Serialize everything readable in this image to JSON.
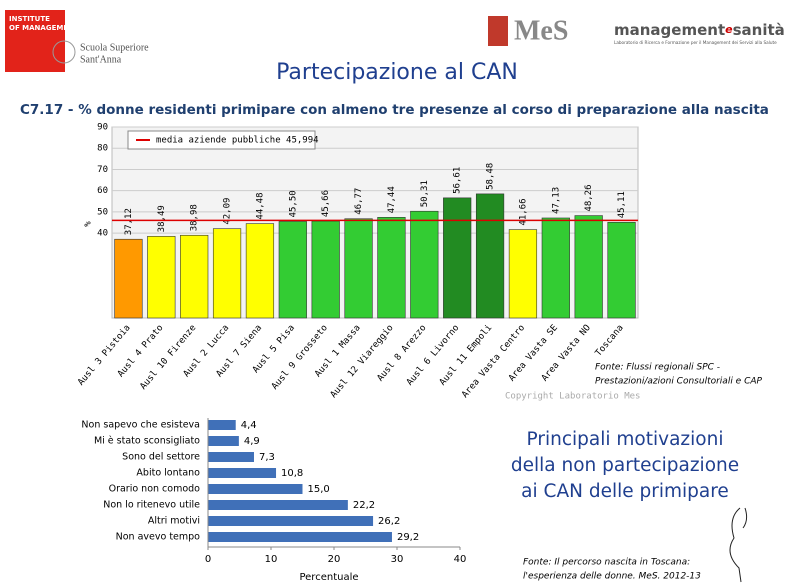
{
  "header": {
    "institute": [
      "INSTITUTE",
      "OF MANAGEMENT"
    ],
    "school": [
      "Scuola Superiore",
      "Sant'Anna"
    ],
    "mes_logo": "MeS",
    "brand": [
      "management",
      "e",
      "sanità"
    ],
    "tagline": "Laboratorio di Ricerca e Formazione per il Management dei Servizi alla Salute"
  },
  "title": "Partecipazione al CAN",
  "chart_data": [
    {
      "type": "bar",
      "title": "C7.17 - % donne residenti primipare con almeno tre presenze al corso di preparazione alla nascita",
      "ylabel": "%",
      "categories": [
        "Ausl 3 Pistoia",
        "Ausl 4 Prato",
        "Ausl 10 Firenze",
        "Ausl 2 Lucca",
        "Ausl 7 Siena",
        "Ausl 5 Pisa",
        "Ausl 9 Grosseto",
        "Ausl 1 Massa",
        "Ausl 12 Viareggio",
        "Ausl 8 Arezzo",
        "Ausl 6 Livorno",
        "Ausl 11 Empoli",
        "Area Vasta Centro",
        "Area Vasta SE",
        "Area Vasta NO",
        "Toscana"
      ],
      "values": [
        37.12,
        38.49,
        38.98,
        42.09,
        44.48,
        45.5,
        45.66,
        46.77,
        47.44,
        50.31,
        56.61,
        58.48,
        41.66,
        47.13,
        48.26,
        45.11
      ],
      "value_labels": [
        "37,12",
        "38,49",
        "38,98",
        "42,09",
        "44,48",
        "45,50",
        "45,66",
        "46,77",
        "47,44",
        "50,31",
        "56,61",
        "58,48",
        "41,66",
        "47,13",
        "48,26",
        "45,11"
      ],
      "colors": [
        "#ff9900",
        "#ffff00",
        "#ffff00",
        "#ffff00",
        "#ffff00",
        "#33cc33",
        "#33cc33",
        "#33cc33",
        "#33cc33",
        "#33cc33",
        "#228b22",
        "#228b22",
        "#ffff00",
        "#33cc33",
        "#33cc33",
        "#33cc33"
      ],
      "reference": {
        "label": "media aziende pubbliche 45,994",
        "value": 45.994,
        "color": "#dd0000"
      },
      "ylim": [
        0,
        90
      ],
      "yticks": [
        40,
        50,
        60,
        70,
        80,
        90
      ],
      "grid": true
    },
    {
      "type": "barh",
      "title": [
        "Principali motivazioni",
        "della non partecipazione",
        "ai CAN delle primipare"
      ],
      "xlabel": "Percentuale",
      "categories": [
        "Non sapevo che esisteva",
        "Mi è stato sconsigliato",
        "Sono del settore",
        "Abito lontano",
        "Orario non comodo",
        "Non lo ritenevo utile",
        "Altri motivi",
        "Non avevo tempo"
      ],
      "values": [
        4.4,
        4.9,
        7.3,
        10.8,
        15.0,
        22.2,
        26.2,
        29.2
      ],
      "value_labels": [
        "4,4",
        "4,9",
        "7,3",
        "10,8",
        "15,0",
        "22,2",
        "26,2",
        "29,2"
      ],
      "color": "#4070b8",
      "xlim": [
        0,
        40
      ],
      "xticks": [
        0,
        10,
        20,
        30,
        40
      ]
    }
  ],
  "source_1": [
    "Fonte: Flussi regionali SPC -",
    "Prestazioni/azioni Consultoriali e CAP"
  ],
  "copyright": "Copyright Laboratorio Mes",
  "source_2": [
    "Fonte: Il percorso nascita in Toscana:",
    "l'esperienza delle donne. MeS. 2012-13"
  ]
}
